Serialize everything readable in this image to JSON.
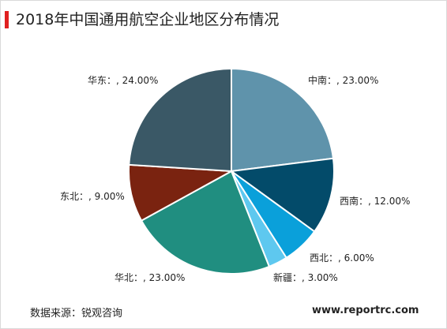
{
  "chart_data": {
    "type": "pie",
    "title": "2018年中国通用航空企业地区分布情况",
    "slices": [
      {
        "name": "中南",
        "value": 23.0,
        "label": "中南：, 23.00%",
        "color": "#5f93ab"
      },
      {
        "name": "西南",
        "value": 12.0,
        "label": "西南：, 12.00%",
        "color": "#034b6a"
      },
      {
        "name": "西北",
        "value": 6.0,
        "label": "西北：, 6.00%",
        "color": "#0aa0da"
      },
      {
        "name": "新疆",
        "value": 3.0,
        "label": "新疆：, 3.00%",
        "color": "#5ec8ef"
      },
      {
        "name": "华北",
        "value": 23.0,
        "label": "华北：, 23.00%",
        "color": "#208e80"
      },
      {
        "name": "东北",
        "value": 9.0,
        "label": "东北：, 9.00%",
        "color": "#7a2310"
      },
      {
        "name": "华东",
        "value": 24.0,
        "label": "华东：, 24.00%",
        "color": "#3a5866"
      }
    ]
  },
  "footer": {
    "source": "数据来源：锐观咨询",
    "website": "www.reportrc.com"
  }
}
